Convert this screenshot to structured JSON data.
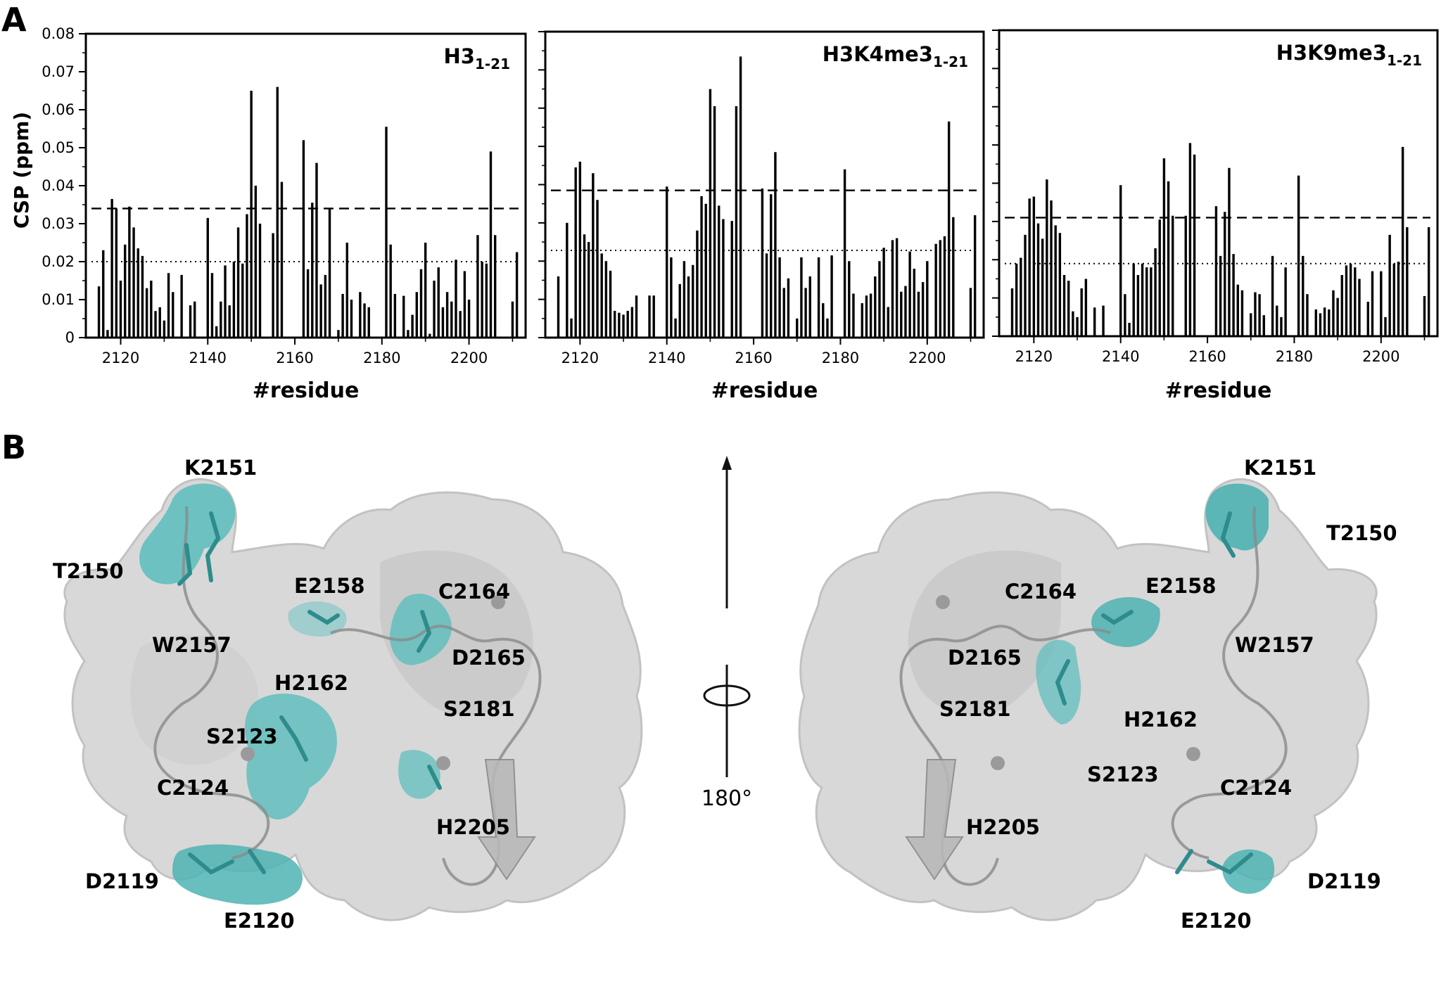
{
  "figure": {
    "panel_a_label": "A",
    "panel_b_label": "B"
  },
  "chart_data": [
    {
      "type": "bar",
      "title": "H3",
      "title_subscript": "1-21",
      "xlabel": "#residue",
      "ylabel": "CSP (ppm)",
      "xlim": [
        2112,
        2213
      ],
      "ylim": [
        0,
        0.08
      ],
      "xticks": [
        2120,
        2140,
        2160,
        2180,
        2200
      ],
      "yticks": [
        0,
        0.01,
        0.02,
        0.03,
        0.04,
        0.05,
        0.06,
        0.07,
        0.08
      ],
      "ytick_labels": [
        "0",
        "0.01",
        "0.02",
        "0.03",
        "0.04",
        "0.05",
        "0.06",
        "0.07",
        "0.08"
      ],
      "show_y_labels": true,
      "threshold_dashed": 0.034,
      "threshold_dotted": 0.02,
      "x": [
        2115,
        2116,
        2117,
        2118,
        2119,
        2120,
        2121,
        2122,
        2123,
        2124,
        2125,
        2126,
        2127,
        2128,
        2129,
        2130,
        2131,
        2132,
        2133,
        2134,
        2136,
        2137,
        2138,
        2140,
        2141,
        2142,
        2143,
        2144,
        2145,
        2146,
        2147,
        2148,
        2149,
        2150,
        2151,
        2152,
        2155,
        2156,
        2157,
        2158,
        2162,
        2163,
        2164,
        2165,
        2166,
        2167,
        2168,
        2169,
        2170,
        2171,
        2172,
        2173,
        2174,
        2175,
        2176,
        2177,
        2178,
        2179,
        2181,
        2182,
        2183,
        2184,
        2185,
        2186,
        2187,
        2188,
        2189,
        2190,
        2191,
        2192,
        2193,
        2194,
        2195,
        2196,
        2197,
        2198,
        2199,
        2200,
        2201,
        2202,
        2203,
        2204,
        2205,
        2206,
        2207,
        2210,
        2211
      ],
      "values": [
        0.0135,
        0.023,
        0.002,
        0.0365,
        0.034,
        0.015,
        0.0245,
        0.0345,
        0.029,
        0.0235,
        0.0215,
        0.013,
        0.015,
        0.007,
        0.008,
        0.0045,
        0.017,
        0.012,
        0.0,
        0.0165,
        0.0085,
        0.0095,
        0.0,
        0.0315,
        0.017,
        0.003,
        0.0095,
        0.019,
        0.0085,
        0.02,
        0.029,
        0.0195,
        0.0325,
        0.065,
        0.04,
        0.03,
        0.0275,
        0.066,
        0.041,
        0.0,
        0.052,
        0.018,
        0.0355,
        0.046,
        0.014,
        0.0165,
        0.034,
        0.0,
        0.002,
        0.0115,
        0.025,
        0.01,
        0.0,
        0.012,
        0.009,
        0.008,
        0.0,
        0.0,
        0.0555,
        0.0245,
        0.0115,
        0.0,
        0.011,
        0.002,
        0.006,
        0.012,
        0.018,
        0.025,
        0.001,
        0.015,
        0.0185,
        0.008,
        0.012,
        0.0095,
        0.0205,
        0.007,
        0.0175,
        0.01,
        0.0,
        0.027,
        0.02,
        0.0195,
        0.049,
        0.027,
        0.0,
        0.0095,
        0.0225
      ]
    },
    {
      "type": "bar",
      "title": "H3K4me3",
      "title_subscript": "1-21",
      "xlabel": "#residue",
      "ylabel": "",
      "xlim": [
        2112,
        2213
      ],
      "ylim": [
        0,
        0.08
      ],
      "xticks": [
        2120,
        2140,
        2160,
        2180,
        2200
      ],
      "yticks": [
        0,
        0.01,
        0.02,
        0.03,
        0.04,
        0.05,
        0.06,
        0.07,
        0.08
      ],
      "ytick_labels": [],
      "show_y_labels": false,
      "threshold_dashed": 0.0385,
      "threshold_dotted": 0.0228,
      "x": [
        2115,
        2117,
        2118,
        2119,
        2120,
        2121,
        2122,
        2123,
        2124,
        2125,
        2126,
        2127,
        2128,
        2129,
        2130,
        2131,
        2132,
        2133,
        2134,
        2136,
        2137,
        2138,
        2140,
        2141,
        2142,
        2143,
        2144,
        2145,
        2146,
        2147,
        2148,
        2149,
        2150,
        2151,
        2152,
        2153,
        2155,
        2156,
        2157,
        2158,
        2162,
        2163,
        2164,
        2165,
        2166,
        2167,
        2168,
        2169,
        2170,
        2171,
        2172,
        2173,
        2174,
        2175,
        2176,
        2177,
        2178,
        2179,
        2181,
        2182,
        2183,
        2184,
        2185,
        2186,
        2187,
        2188,
        2189,
        2190,
        2191,
        2192,
        2193,
        2194,
        2195,
        2196,
        2197,
        2198,
        2199,
        2200,
        2201,
        2202,
        2203,
        2204,
        2205,
        2206,
        2207,
        2210,
        2211
      ],
      "values": [
        0.016,
        0.03,
        0.005,
        0.0445,
        0.046,
        0.027,
        0.025,
        0.043,
        0.036,
        0.022,
        0.02,
        0.0175,
        0.007,
        0.0065,
        0.006,
        0.007,
        0.008,
        0.011,
        0.0,
        0.011,
        0.011,
        0.0,
        0.0395,
        0.021,
        0.005,
        0.014,
        0.02,
        0.016,
        0.019,
        0.028,
        0.037,
        0.035,
        0.065,
        0.0605,
        0.0345,
        0.031,
        0.0305,
        0.0605,
        0.0735,
        0.0,
        0.039,
        0.022,
        0.0375,
        0.0485,
        0.021,
        0.013,
        0.0155,
        0.0,
        0.005,
        0.021,
        0.013,
        0.016,
        0.0,
        0.021,
        0.009,
        0.005,
        0.0215,
        0.0,
        0.044,
        0.02,
        0.0115,
        0.0,
        0.009,
        0.011,
        0.0115,
        0.016,
        0.02,
        0.0235,
        0.008,
        0.0255,
        0.026,
        0.012,
        0.0135,
        0.0225,
        0.018,
        0.012,
        0.0145,
        0.02,
        0.0,
        0.0245,
        0.0255,
        0.0265,
        0.0565,
        0.0315,
        0.0,
        0.013,
        0.032
      ]
    },
    {
      "type": "bar",
      "title": "H3K9me3",
      "title_subscript": "1-21",
      "xlabel": "#residue",
      "ylabel": "",
      "xlim": [
        2112,
        2213
      ],
      "ylim": [
        0,
        0.08
      ],
      "xticks": [
        2120,
        2140,
        2160,
        2180,
        2200
      ],
      "yticks": [
        0,
        0.01,
        0.02,
        0.03,
        0.04,
        0.05,
        0.06,
        0.07,
        0.08
      ],
      "ytick_labels": [],
      "show_y_labels": false,
      "threshold_dashed": 0.031,
      "threshold_dotted": 0.019,
      "x": [
        2115,
        2116,
        2117,
        2118,
        2119,
        2120,
        2121,
        2122,
        2123,
        2124,
        2125,
        2126,
        2127,
        2128,
        2129,
        2130,
        2131,
        2132,
        2133,
        2134,
        2136,
        2137,
        2138,
        2140,
        2141,
        2142,
        2143,
        2144,
        2145,
        2146,
        2147,
        2148,
        2149,
        2150,
        2151,
        2152,
        2155,
        2156,
        2157,
        2158,
        2162,
        2163,
        2164,
        2165,
        2166,
        2167,
        2168,
        2169,
        2170,
        2171,
        2172,
        2173,
        2174,
        2175,
        2176,
        2177,
        2178,
        2179,
        2181,
        2182,
        2183,
        2184,
        2185,
        2186,
        2187,
        2188,
        2189,
        2190,
        2191,
        2192,
        2193,
        2194,
        2195,
        2196,
        2197,
        2198,
        2199,
        2200,
        2201,
        2202,
        2203,
        2204,
        2205,
        2206,
        2207,
        2210,
        2211
      ],
      "values": [
        0.0125,
        0.019,
        0.0205,
        0.0265,
        0.036,
        0.0365,
        0.0295,
        0.0255,
        0.041,
        0.0355,
        0.029,
        0.027,
        0.016,
        0.0145,
        0.0065,
        0.005,
        0.0125,
        0.015,
        0.0,
        0.0075,
        0.008,
        0.0,
        0.0,
        0.0395,
        0.011,
        0.0035,
        0.019,
        0.016,
        0.019,
        0.018,
        0.018,
        0.023,
        0.0305,
        0.0465,
        0.0405,
        0.0315,
        0.0315,
        0.0505,
        0.0475,
        0.0,
        0.034,
        0.021,
        0.0325,
        0.044,
        0.0215,
        0.0135,
        0.012,
        0.0,
        0.006,
        0.0115,
        0.011,
        0.0055,
        0.0,
        0.021,
        0.008,
        0.005,
        0.018,
        0.0,
        0.042,
        0.021,
        0.011,
        0.0,
        0.007,
        0.006,
        0.0075,
        0.007,
        0.012,
        0.01,
        0.016,
        0.0185,
        0.019,
        0.018,
        0.015,
        0.0,
        0.009,
        0.017,
        0.0,
        0.017,
        0.005,
        0.0265,
        0.019,
        0.0195,
        0.0495,
        0.0285,
        0.0,
        0.0105,
        0.0285
      ]
    }
  ],
  "structure": {
    "rotation_label": "180°",
    "left_labels": [
      "K2151",
      "T2150",
      "E2158",
      "C2164",
      "W2157",
      "D2165",
      "H2162",
      "S2181",
      "S2123",
      "C2124",
      "H2205",
      "D2119",
      "E2120"
    ],
    "right_labels": [
      "K2151",
      "T2150",
      "E2158",
      "C2164",
      "W2157",
      "D2165",
      "H2162",
      "S2181",
      "S2123",
      "C2124",
      "H2205",
      "D2119",
      "E2120"
    ],
    "colors": {
      "surface": "#d9d9d9",
      "surface_edge": "#bcbcbc",
      "highlight": "#4fb3b3",
      "stick": "#2e8c8c",
      "cartoon": "#8a8a8a",
      "bars": "#000000"
    }
  }
}
